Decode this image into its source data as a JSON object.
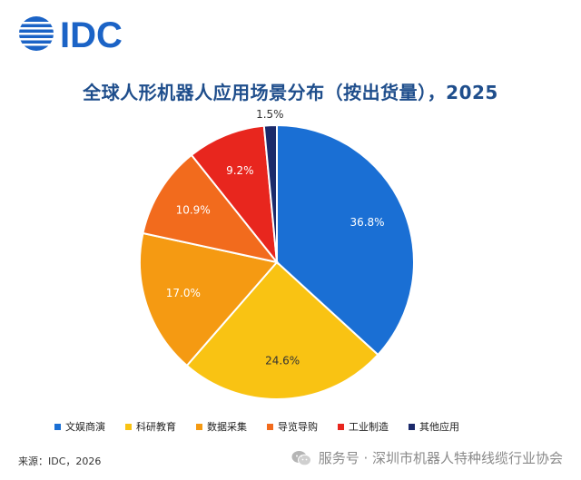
{
  "brand": {
    "logo_text": "IDC"
  },
  "source_note": "来源：IDC，2026",
  "watermark": {
    "text": "服务号 · 深圳市机器人特种线缆行业协会",
    "icon": "wechat-icon"
  },
  "colors": {
    "title": "#1f4e8c",
    "logo": "#1b63c6"
  },
  "chart_data": {
    "type": "pie",
    "title": "全球人形机器人应用场景分布（按出货量），2025",
    "start_angle_deg": 0,
    "direction": "clockwise",
    "slices": [
      {
        "label": "文娱商演",
        "value": 36.8,
        "value_label": "36.8%",
        "color": "#1a6fd4",
        "label_color": "#ffffff"
      },
      {
        "label": "科研教育",
        "value": 24.6,
        "value_label": "24.6%",
        "color": "#f9c313",
        "label_color": "#333333"
      },
      {
        "label": "数据采集",
        "value": 17.0,
        "value_label": "17.0%",
        "color": "#f59a12",
        "label_color": "#ffffff"
      },
      {
        "label": "导览导购",
        "value": 10.9,
        "value_label": "10.9%",
        "color": "#f26b1d",
        "label_color": "#ffffff"
      },
      {
        "label": "工业制造",
        "value": 9.2,
        "value_label": "9.2%",
        "color": "#e8261e",
        "label_color": "#ffffff"
      },
      {
        "label": "其他应用",
        "value": 1.5,
        "value_label": "1.5%",
        "color": "#1b2a6b",
        "label_color": "#333333"
      }
    ],
    "legend_position": "bottom"
  }
}
